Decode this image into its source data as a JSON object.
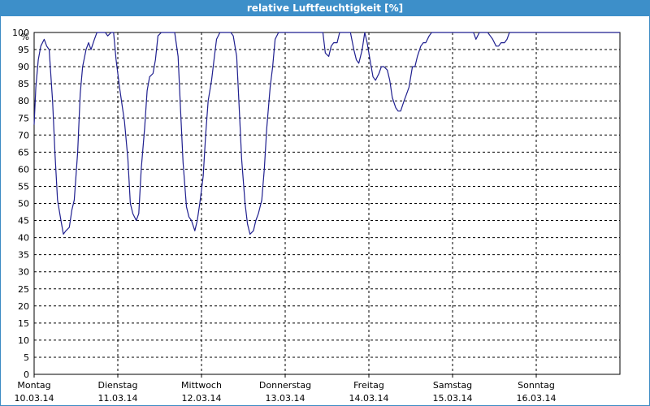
{
  "window": {
    "title": "relative Luftfeuchtigkeit [%]"
  },
  "colors": {
    "titlebar": "#3d8fc9",
    "line": "#1f1f8f",
    "grid": "#000000"
  },
  "chart_data": {
    "type": "line",
    "title": "relative Luftfeuchtigkeit [%]",
    "ylabel": "%",
    "xlabel": "",
    "ylim": [
      0,
      100
    ],
    "yticks": [
      0,
      5,
      10,
      15,
      20,
      25,
      30,
      35,
      40,
      45,
      50,
      55,
      60,
      65,
      70,
      75,
      80,
      85,
      90,
      95,
      100
    ],
    "grid": true,
    "grid_style": "dashed",
    "x_range_days": [
      0,
      7
    ],
    "x_ticks": [
      {
        "day": "Montag",
        "date": "10.03.14"
      },
      {
        "day": "Dienstag",
        "date": "11.03.14"
      },
      {
        "day": "Mittwoch",
        "date": "12.03.14"
      },
      {
        "day": "Donnerstag",
        "date": "13.03.14"
      },
      {
        "day": "Freitag",
        "date": "14.03.14"
      },
      {
        "day": "Samstag",
        "date": "15.03.14"
      },
      {
        "day": "Sonntag",
        "date": "16.03.14"
      }
    ],
    "series": [
      {
        "x": [
          0.0,
          0.02,
          0.05,
          0.08,
          0.12,
          0.15,
          0.18,
          0.22,
          0.25,
          0.28,
          0.32,
          0.35,
          0.38,
          0.42,
          0.45,
          0.48,
          0.52,
          0.55,
          0.58,
          0.62,
          0.65,
          0.68,
          0.72,
          0.75,
          0.78,
          0.82,
          0.85,
          0.88,
          0.92,
          0.95,
          0.98,
          1.02,
          1.05,
          1.08,
          1.12,
          1.15,
          1.18,
          1.22,
          1.25,
          1.28,
          1.32,
          1.35,
          1.38,
          1.42,
          1.45,
          1.48,
          1.52,
          1.55,
          1.58,
          1.62,
          1.65,
          1.68,
          1.72,
          1.75,
          1.78,
          1.82,
          1.85,
          1.88,
          1.92,
          1.95,
          1.98,
          2.02,
          2.05,
          2.08,
          2.12,
          2.15,
          2.18,
          2.22,
          2.25,
          2.28,
          2.32,
          2.35,
          2.38,
          2.42,
          2.45,
          2.48,
          2.52,
          2.55,
          2.58,
          2.62,
          2.65,
          2.68,
          2.72,
          2.75,
          2.78,
          2.82,
          2.85,
          2.88,
          2.92,
          2.95,
          2.98,
          3.02,
          3.05,
          3.08,
          3.12,
          3.15,
          3.18,
          3.22,
          3.25,
          3.28,
          3.32,
          3.35,
          3.38,
          3.42,
          3.45,
          3.48,
          3.52,
          3.55,
          3.58,
          3.62,
          3.65,
          3.68,
          3.72,
          3.75,
          3.78,
          3.82,
          3.85,
          3.88,
          3.92,
          3.95,
          3.98,
          4.02,
          4.05,
          4.08,
          4.12,
          4.15,
          4.18,
          4.22,
          4.25,
          4.28,
          4.32,
          4.35,
          4.38,
          4.42,
          4.45,
          4.48,
          4.52,
          4.55,
          4.58,
          4.62,
          4.65,
          4.68,
          4.72,
          4.75,
          4.78,
          4.82,
          4.85,
          4.88,
          4.92,
          4.95,
          4.98,
          5.02,
          5.05,
          5.08,
          5.12,
          5.15,
          5.18,
          5.22,
          5.25,
          5.28,
          5.32,
          5.35,
          5.38,
          5.42,
          5.45,
          5.48,
          5.52,
          5.55,
          5.58,
          5.62,
          5.65,
          5.68,
          5.72,
          5.75,
          5.78,
          5.82,
          5.85,
          5.88,
          5.92,
          5.95,
          5.98,
          6.02,
          6.05,
          6.08,
          6.12,
          6.15,
          6.18,
          6.22,
          6.25,
          6.28,
          6.32,
          6.35,
          6.38,
          6.42,
          6.45,
          6.48,
          6.52,
          6.55,
          6.58,
          6.62,
          6.65,
          6.68,
          6.72,
          6.75,
          6.78,
          6.82,
          6.85,
          6.88,
          6.92,
          6.95,
          6.98,
          7.0
        ],
        "y": [
          73,
          84,
          92,
          96,
          98,
          96,
          95,
          80,
          64,
          51,
          45,
          41,
          42,
          43,
          48,
          51,
          65,
          82,
          90,
          95,
          97,
          95,
          98,
          100,
          100,
          100,
          100,
          99,
          100,
          100,
          92,
          84,
          79,
          74,
          63,
          50,
          47,
          45,
          47,
          60,
          72,
          83,
          87,
          88,
          92,
          99,
          100,
          100,
          100,
          100,
          100,
          100,
          93,
          77,
          62,
          49,
          46,
          45,
          42,
          45,
          50,
          58,
          70,
          80,
          86,
          92,
          98,
          100,
          100,
          100,
          100,
          100,
          99,
          93,
          78,
          63,
          50,
          44,
          41,
          42,
          45,
          47,
          51,
          60,
          72,
          84,
          90,
          98,
          100,
          100,
          100,
          100,
          100,
          100,
          100,
          100,
          100,
          100,
          100,
          100,
          100,
          100,
          100,
          100,
          100,
          94,
          93,
          96,
          97,
          97,
          100,
          100,
          100,
          100,
          100,
          95,
          92,
          91,
          95,
          100,
          97,
          91,
          87,
          86,
          88,
          90,
          90,
          89,
          86,
          81,
          78,
          77,
          77,
          80,
          82,
          84,
          90,
          90,
          93,
          96,
          97,
          97,
          99,
          100,
          100,
          100,
          100,
          100,
          100,
          100,
          100,
          100,
          100,
          100,
          100,
          100,
          100,
          100,
          100,
          98,
          100,
          100,
          100,
          100,
          99,
          98,
          96,
          96,
          97,
          97,
          98,
          100,
          100,
          100,
          100,
          100,
          100,
          100,
          100,
          100,
          100,
          100,
          100,
          100,
          100,
          100,
          100,
          100,
          100,
          100,
          100,
          100,
          100,
          100,
          100,
          100,
          100,
          100,
          100,
          100,
          100,
          100,
          100,
          100,
          100,
          100,
          100,
          100,
          100,
          100,
          100,
          100
        ]
      }
    ]
  }
}
